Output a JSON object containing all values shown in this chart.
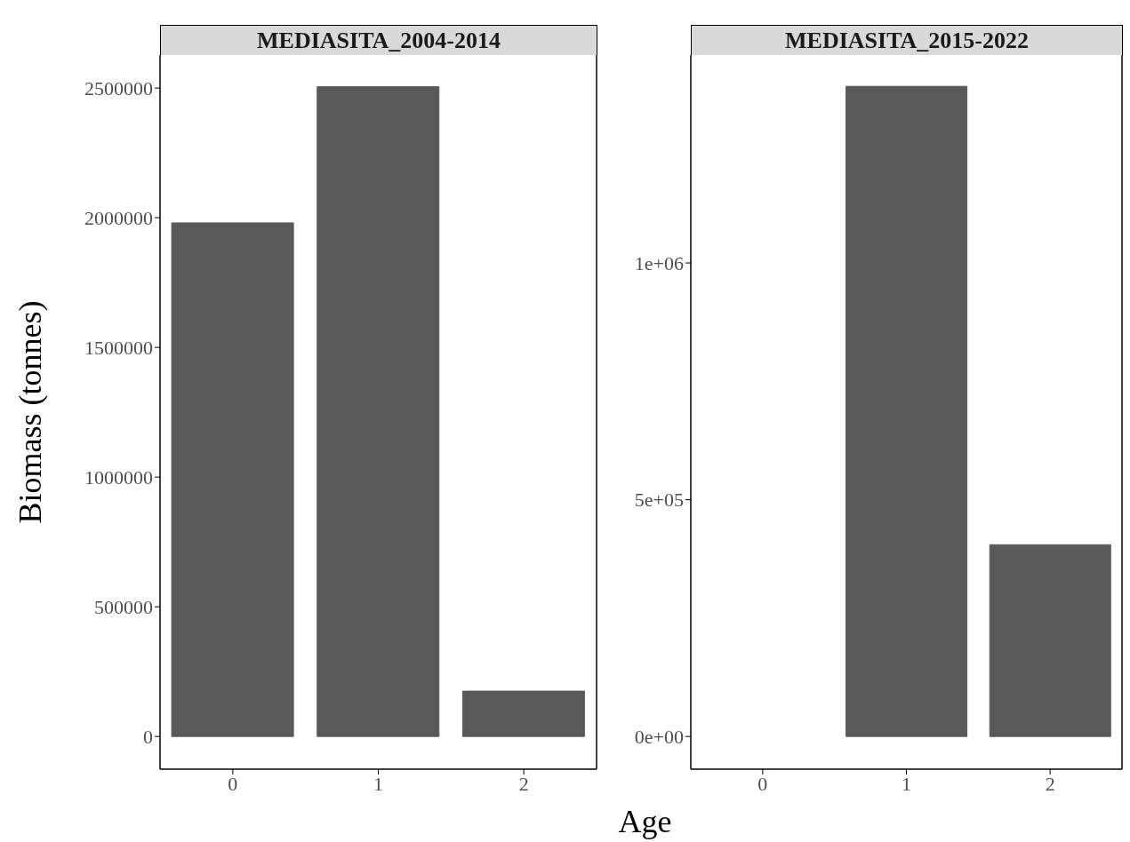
{
  "chart_data": [
    {
      "type": "bar",
      "title": "MEDIASITA_2004-2014",
      "ylabel": "Biomass (tonnes)",
      "xlabel": "Age",
      "categories": [
        "0",
        "1",
        "2"
      ],
      "values": [
        1980000,
        2505000,
        175000
      ],
      "color": "#595959",
      "ylim": [
        -126000,
        2627000
      ],
      "yticks": [
        0,
        500000,
        1000000,
        1500000,
        2000000,
        2500000
      ],
      "grid": false
    },
    {
      "type": "bar",
      "title": "MEDIASITA_2015-2022",
      "categories": [
        "0",
        "1",
        "2"
      ],
      "values": [
        0,
        1373000,
        405000
      ],
      "color": "#595959",
      "ylim": [
        -69000,
        1439000
      ],
      "yticks": [
        {
          "value": 0,
          "label": "0e+00"
        },
        {
          "value": 500000,
          "label": "5e+05"
        },
        {
          "value": 1000000,
          "label": "1e+06"
        }
      ],
      "grid": false
    }
  ]
}
